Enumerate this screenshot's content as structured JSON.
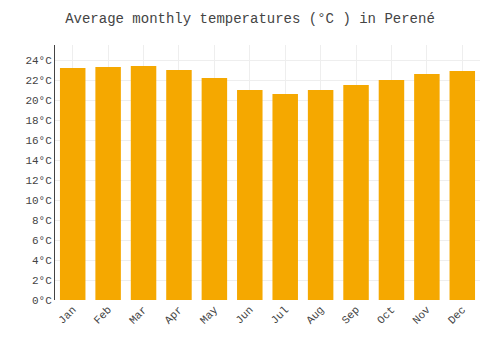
{
  "chart_data": {
    "type": "bar",
    "title": "Average monthly temperatures (°C ) in Perené",
    "categories": [
      "Jan",
      "Feb",
      "Mar",
      "Apr",
      "May",
      "Jun",
      "Jul",
      "Aug",
      "Sep",
      "Oct",
      "Nov",
      "Dec"
    ],
    "values": [
      23.2,
      23.3,
      23.4,
      23.0,
      22.2,
      21.0,
      20.6,
      21.0,
      21.5,
      22.0,
      22.6,
      22.9
    ],
    "color": "#F5A800",
    "ylim": [
      0,
      25.5
    ],
    "yticks": [
      {
        "value": 0,
        "label": "0°C"
      },
      {
        "value": 2,
        "label": "2°C"
      },
      {
        "value": 4,
        "label": "4°C"
      },
      {
        "value": 6,
        "label": "6°C"
      },
      {
        "value": 8,
        "label": "8°C"
      },
      {
        "value": 10,
        "label": "10°C"
      },
      {
        "value": 12,
        "label": "12°C"
      },
      {
        "value": 14,
        "label": "14°C"
      },
      {
        "value": 16,
        "label": "16°C"
      },
      {
        "value": 18,
        "label": "18°C"
      },
      {
        "value": 20,
        "label": "20°C"
      },
      {
        "value": 22,
        "label": "22°C"
      },
      {
        "value": 24,
        "label": "24°C"
      }
    ],
    "grid": true
  }
}
